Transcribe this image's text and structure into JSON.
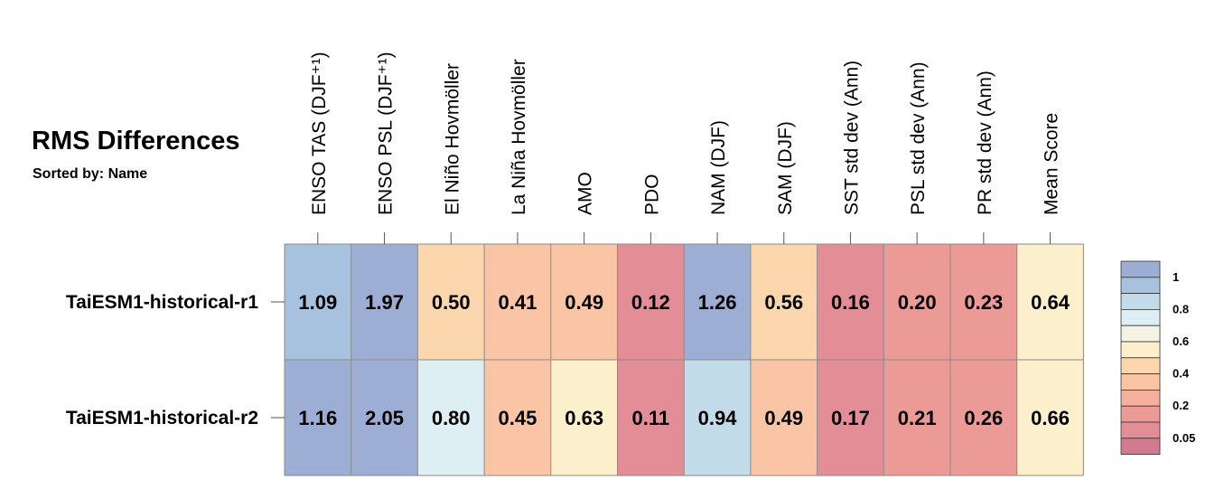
{
  "title": "RMS Differences",
  "subtitle": "Sorted by: Name",
  "chart_data": {
    "type": "heatmap",
    "title": "RMS Differences",
    "subtitle": "Sorted by: Name",
    "columns": [
      "ENSO TAS (DJF⁺¹)",
      "ENSO PSL (DJF⁺¹)",
      "El Niño Hovmöller",
      "La Niña Hovmöller",
      "AMO",
      "PDO",
      "NAM (DJF)",
      "SAM (DJF)",
      "SST std dev (Ann)",
      "PSL std dev (Ann)",
      "PR std dev (Ann)",
      "Mean Score"
    ],
    "rows": [
      "TaiESM1-historical-r1",
      "TaiESM1-historical-r2"
    ],
    "values": [
      [
        1.09,
        1.97,
        0.5,
        0.41,
        0.49,
        0.12,
        1.26,
        0.56,
        0.16,
        0.2,
        0.23,
        0.64
      ],
      [
        1.16,
        2.05,
        0.8,
        0.45,
        0.63,
        0.11,
        0.94,
        0.49,
        0.17,
        0.21,
        0.26,
        0.66
      ]
    ],
    "value_labels": [
      [
        "1.09",
        "1.97",
        "0.50",
        "0.41",
        "0.49",
        "0.12",
        "1.26",
        "0.56",
        "0.16",
        "0.20",
        "0.23",
        "0.64"
      ],
      [
        "1.16",
        "2.05",
        "0.80",
        "0.45",
        "0.63",
        "0.11",
        "0.94",
        "0.49",
        "0.17",
        "0.21",
        "0.26",
        "0.66"
      ]
    ],
    "colorbar": {
      "colors_top_to_bottom": [
        "#9daed4",
        "#a7c2df",
        "#c1dbe8",
        "#deeff4",
        "#f3f2e4",
        "#fcefcc",
        "#fcd7ae",
        "#f9c5a4",
        "#f4b09c",
        "#ec9a95",
        "#e38e96",
        "#d27a8f"
      ],
      "tick_labels": [
        "1",
        "0.8",
        "0.6",
        "0.4",
        "0.2",
        "0.05"
      ],
      "tick_values": [
        1,
        0.8,
        0.6,
        0.4,
        0.2,
        0.05
      ]
    },
    "grid": true,
    "legend_position": "right"
  }
}
